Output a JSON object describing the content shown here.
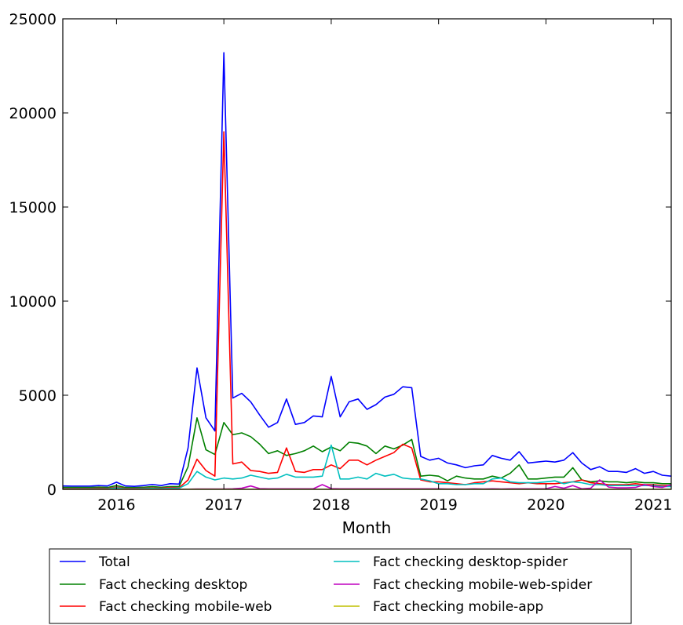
{
  "chart_data": {
    "type": "line",
    "title": "",
    "xlabel": "Month",
    "ylabel": "",
    "ylim": [
      0,
      25000
    ],
    "xlim": [
      "2015-07",
      "2021-03"
    ],
    "grid": false,
    "legend_position": "bottom",
    "y_ticks": [
      "0",
      "5000",
      "10000",
      "15000",
      "20000",
      "25000"
    ],
    "x_ticks": [
      "2016",
      "2017",
      "2018",
      "2019",
      "2020",
      "2021"
    ],
    "x": [
      "2015-07",
      "2015-08",
      "2015-09",
      "2015-10",
      "2015-11",
      "2015-12",
      "2016-01",
      "2016-02",
      "2016-03",
      "2016-04",
      "2016-05",
      "2016-06",
      "2016-07",
      "2016-08",
      "2016-09",
      "2016-10",
      "2016-11",
      "2016-12",
      "2017-01",
      "2017-02",
      "2017-03",
      "2017-04",
      "2017-05",
      "2017-06",
      "2017-07",
      "2017-08",
      "2017-09",
      "2017-10",
      "2017-11",
      "2017-12",
      "2018-01",
      "2018-02",
      "2018-03",
      "2018-04",
      "2018-05",
      "2018-06",
      "2018-07",
      "2018-08",
      "2018-09",
      "2018-10",
      "2018-11",
      "2018-12",
      "2019-01",
      "2019-02",
      "2019-03",
      "2019-04",
      "2019-05",
      "2019-06",
      "2019-07",
      "2019-08",
      "2019-09",
      "2019-10",
      "2019-11",
      "2019-12",
      "2020-01",
      "2020-02",
      "2020-03",
      "2020-04",
      "2020-05",
      "2020-06",
      "2020-07",
      "2020-08",
      "2020-09",
      "2020-10",
      "2020-11",
      "2020-12",
      "2021-01",
      "2021-02",
      "2021-03"
    ],
    "series": [
      {
        "name": "Total",
        "color": "#0000ff",
        "values": [
          180,
          170,
          170,
          170,
          200,
          180,
          380,
          180,
          160,
          200,
          260,
          200,
          300,
          280,
          2200,
          6450,
          3800,
          3100,
          23200,
          4850,
          5100,
          4650,
          3950,
          3300,
          3550,
          4800,
          3450,
          3550,
          3900,
          3850,
          6000,
          3850,
          4650,
          4800,
          4250,
          4500,
          4900,
          5050,
          5450,
          5400,
          1750,
          1550,
          1650,
          1400,
          1300,
          1150,
          1250,
          1300,
          1800,
          1650,
          1550,
          2000,
          1400,
          1450,
          1500,
          1450,
          1550,
          1950,
          1400,
          1050,
          1200,
          950,
          950,
          900,
          1100,
          850,
          950,
          750,
          700
        ]
      },
      {
        "name": "Fact checking desktop",
        "color": "#008000",
        "values": [
          100,
          100,
          100,
          100,
          120,
          100,
          200,
          100,
          90,
          110,
          150,
          110,
          150,
          150,
          1200,
          3800,
          2100,
          1850,
          3550,
          2900,
          3000,
          2800,
          2400,
          1900,
          2050,
          1800,
          1900,
          2050,
          2300,
          2000,
          2250,
          2050,
          2500,
          2450,
          2300,
          1900,
          2300,
          2150,
          2350,
          2650,
          700,
          750,
          700,
          450,
          700,
          600,
          550,
          550,
          700,
          600,
          850,
          1300,
          550,
          550,
          600,
          650,
          650,
          1150,
          500,
          400,
          450,
          400,
          400,
          350,
          400,
          350,
          350,
          300,
          300
        ]
      },
      {
        "name": "Fact checking mobile-web",
        "color": "#ff0000",
        "values": [
          50,
          50,
          50,
          50,
          60,
          50,
          120,
          50,
          50,
          60,
          70,
          60,
          100,
          80,
          500,
          1600,
          1000,
          700,
          19000,
          1350,
          1450,
          1000,
          950,
          850,
          900,
          2200,
          950,
          900,
          1050,
          1050,
          1300,
          1100,
          1550,
          1550,
          1300,
          1550,
          1750,
          1950,
          2400,
          2200,
          500,
          400,
          400,
          350,
          300,
          250,
          350,
          400,
          450,
          400,
          350,
          300,
          350,
          300,
          300,
          300,
          350,
          400,
          500,
          350,
          300,
          250,
          250,
          250,
          300,
          250,
          250,
          200,
          200
        ]
      },
      {
        "name": "Fact checking desktop-spider",
        "color": "#00bfbf",
        "values": [
          30,
          30,
          30,
          30,
          30,
          30,
          80,
          30,
          30,
          40,
          50,
          40,
          60,
          60,
          300,
          950,
          650,
          500,
          600,
          550,
          600,
          750,
          650,
          550,
          600,
          800,
          650,
          650,
          650,
          700,
          2350,
          550,
          550,
          650,
          550,
          850,
          700,
          800,
          600,
          550,
          550,
          450,
          300,
          300,
          250,
          250,
          300,
          300,
          550,
          600,
          400,
          350,
          350,
          350,
          400,
          450,
          300,
          400,
          350,
          250,
          250,
          200,
          200,
          200,
          200,
          200,
          200,
          150,
          150
        ]
      },
      {
        "name": "Fact checking mobile-web-spider",
        "color": "#bf00bf",
        "values": [
          5,
          5,
          5,
          5,
          5,
          5,
          5,
          5,
          5,
          5,
          5,
          5,
          5,
          5,
          10,
          20,
          20,
          20,
          20,
          30,
          60,
          180,
          40,
          30,
          30,
          30,
          30,
          30,
          30,
          250,
          40,
          30,
          30,
          30,
          30,
          30,
          30,
          30,
          30,
          30,
          30,
          30,
          30,
          20,
          20,
          20,
          30,
          20,
          30,
          20,
          30,
          30,
          30,
          30,
          30,
          150,
          60,
          200,
          30,
          60,
          500,
          120,
          80,
          80,
          100,
          250,
          150,
          100,
          250
        ]
      },
      {
        "name": "Fact checking mobile-app",
        "color": "#bfbf00",
        "values": [
          5,
          5,
          5,
          5,
          5,
          5,
          5,
          5,
          5,
          5,
          5,
          5,
          5,
          5,
          5,
          5,
          5,
          5,
          5,
          5,
          5,
          5,
          5,
          5,
          5,
          5,
          5,
          5,
          5,
          5,
          5,
          5,
          5,
          5,
          5,
          5,
          5,
          5,
          5,
          5,
          5,
          5,
          5,
          5,
          5,
          5,
          5,
          5,
          5,
          5,
          5,
          5,
          5,
          5,
          5,
          5,
          5,
          5,
          5,
          5,
          5,
          5,
          5,
          5,
          5,
          5,
          5,
          5,
          5
        ]
      }
    ]
  }
}
